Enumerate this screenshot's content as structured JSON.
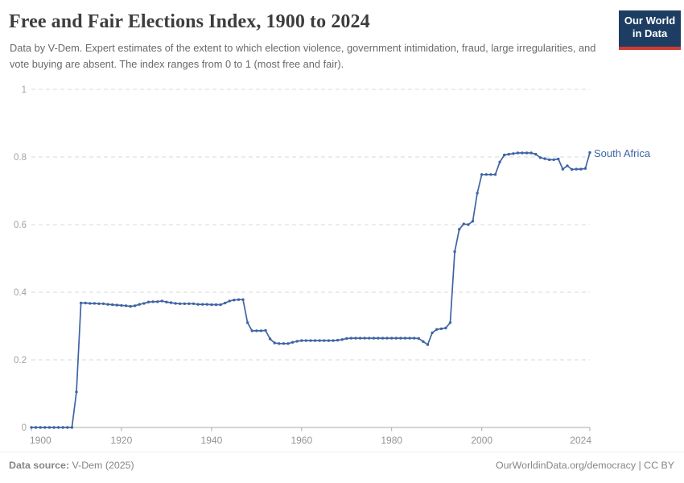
{
  "header": {
    "title": "Free and Fair Elections Index, 1900 to 2024",
    "subtitle": "Data by V-Dem. Expert estimates of the extent to which election violence, government intimidation, fraud, large irregularities, and vote buying are absent. The index ranges from 0 to 1 (most free and fair).",
    "logo": {
      "line1": "Our World",
      "line2": "in Data"
    }
  },
  "footer": {
    "source_label": "Data source:",
    "source_value": "V-Dem (2025)",
    "credit": "OurWorldinData.org/democracy | CC BY"
  },
  "colors": {
    "line": "#3f64a4",
    "grid": "#dadada",
    "axis": "#a8a8a8",
    "y_tick_text": "#a3a3a3",
    "x_tick_text": "#949494",
    "logo_navy": "#1d3d63",
    "logo_red": "#cc3b34"
  },
  "chart_data": {
    "type": "line",
    "title": "Free and Fair Elections Index, 1900 to 2024",
    "xlabel": "",
    "ylabel": "",
    "x_range": [
      1900,
      2024
    ],
    "ylim": [
      0,
      1
    ],
    "x_ticks": [
      1900,
      1920,
      1940,
      1960,
      1980,
      2000,
      2024
    ],
    "y_ticks": [
      0,
      0.2,
      0.4,
      0.6,
      0.8,
      1
    ],
    "grid": "horizontal-dashed",
    "legend_position": "line-end-label",
    "markers": true,
    "series": [
      {
        "name": "South Africa",
        "color": "#3f64a4",
        "years": [
          1900,
          1901,
          1902,
          1903,
          1904,
          1905,
          1906,
          1907,
          1908,
          1909,
          1910,
          1911,
          1912,
          1913,
          1914,
          1915,
          1916,
          1917,
          1918,
          1919,
          1920,
          1921,
          1922,
          1923,
          1924,
          1925,
          1926,
          1927,
          1928,
          1929,
          1930,
          1931,
          1932,
          1933,
          1934,
          1935,
          1936,
          1937,
          1938,
          1939,
          1940,
          1941,
          1942,
          1943,
          1944,
          1945,
          1946,
          1947,
          1948,
          1949,
          1950,
          1951,
          1952,
          1953,
          1954,
          1955,
          1956,
          1957,
          1958,
          1959,
          1960,
          1961,
          1962,
          1963,
          1964,
          1965,
          1966,
          1967,
          1968,
          1969,
          1970,
          1971,
          1972,
          1973,
          1974,
          1975,
          1976,
          1977,
          1978,
          1979,
          1980,
          1981,
          1982,
          1983,
          1984,
          1985,
          1986,
          1987,
          1988,
          1989,
          1990,
          1991,
          1992,
          1993,
          1994,
          1995,
          1996,
          1997,
          1998,
          1999,
          2000,
          2001,
          2002,
          2003,
          2004,
          2005,
          2006,
          2007,
          2008,
          2009,
          2010,
          2011,
          2012,
          2013,
          2014,
          2015,
          2016,
          2017,
          2018,
          2019,
          2020,
          2021,
          2022,
          2023,
          2024
        ],
        "values": [
          0,
          0,
          0,
          0,
          0,
          0,
          0,
          0,
          0,
          0,
          0.105,
          0.368,
          0.368,
          0.367,
          0.367,
          0.366,
          0.366,
          0.364,
          0.363,
          0.362,
          0.361,
          0.36,
          0.358,
          0.36,
          0.364,
          0.367,
          0.371,
          0.372,
          0.372,
          0.374,
          0.371,
          0.369,
          0.367,
          0.366,
          0.366,
          0.366,
          0.366,
          0.364,
          0.364,
          0.364,
          0.363,
          0.363,
          0.363,
          0.368,
          0.374,
          0.377,
          0.378,
          0.378,
          0.31,
          0.286,
          0.286,
          0.286,
          0.287,
          0.262,
          0.25,
          0.248,
          0.248,
          0.248,
          0.252,
          0.255,
          0.257,
          0.257,
          0.257,
          0.257,
          0.257,
          0.257,
          0.257,
          0.257,
          0.258,
          0.26,
          0.263,
          0.264,
          0.264,
          0.264,
          0.264,
          0.264,
          0.264,
          0.264,
          0.264,
          0.264,
          0.264,
          0.264,
          0.264,
          0.264,
          0.264,
          0.264,
          0.263,
          0.254,
          0.245,
          0.28,
          0.29,
          0.292,
          0.294,
          0.31,
          0.52,
          0.586,
          0.602,
          0.6,
          0.61,
          0.693,
          0.748,
          0.748,
          0.748,
          0.748,
          0.785,
          0.806,
          0.808,
          0.81,
          0.812,
          0.812,
          0.812,
          0.812,
          0.808,
          0.798,
          0.795,
          0.792,
          0.792,
          0.794,
          0.764,
          0.774,
          0.763,
          0.764,
          0.764,
          0.766,
          0.813
        ]
      }
    ]
  }
}
